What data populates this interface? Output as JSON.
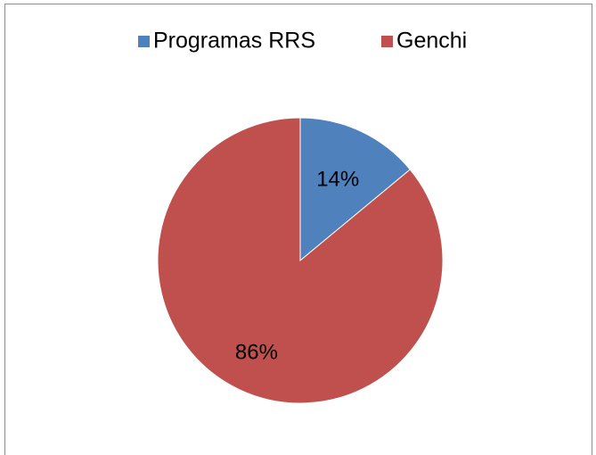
{
  "chart_data": {
    "type": "pie",
    "categories": [
      "Programas RRS",
      "Genchi"
    ],
    "values": [
      14,
      86
    ],
    "value_labels": [
      "14%",
      "86%"
    ],
    "colors": [
      "#4f81bd",
      "#c0504d"
    ],
    "legend": "top"
  }
}
